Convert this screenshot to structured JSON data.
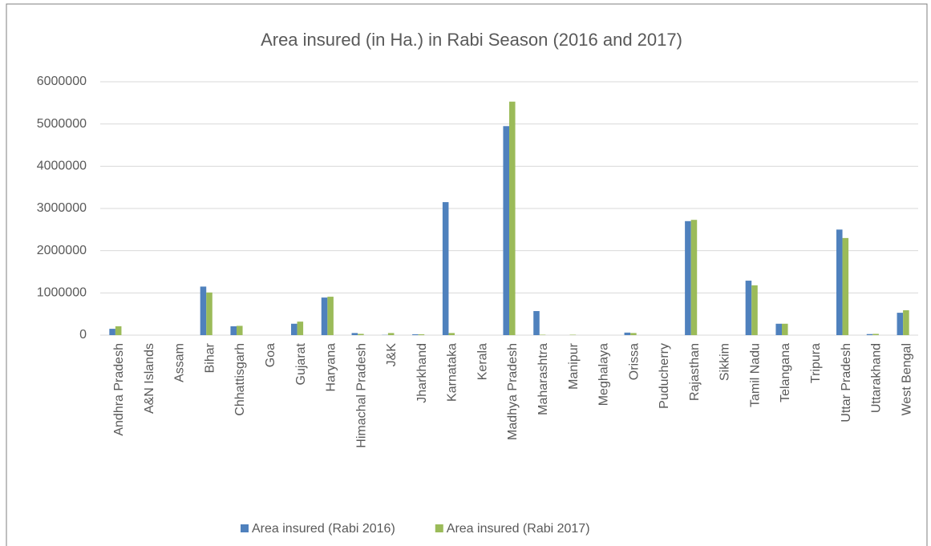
{
  "chart_data": {
    "type": "bar",
    "title": "Area insured (in Ha.) in Rabi Season (2016 and 2017)",
    "categories": [
      "Andhra Pradesh",
      "A&N Islands",
      "Assam",
      "Bihar",
      "Chhattisgarh",
      "Goa",
      "Gujarat",
      "Haryana",
      "Himachal Pradesh",
      "J&K",
      "Jharkhand",
      "Karnataka",
      "Kerala",
      "Madhya Pradesh",
      "Maharashtra",
      "Manipur",
      "Meghalaya",
      "Orissa",
      "Puducherry",
      "Rajasthan",
      "Sikkim",
      "Tamil Nadu",
      "Telangana",
      "Tripura",
      "Uttar Pradesh",
      "Uttarakhand",
      "West Bengal"
    ],
    "series": [
      {
        "name": "Area insured (Rabi 2016)",
        "color": "#4f81bd",
        "values": [
          150000,
          0,
          0,
          1150000,
          210000,
          0,
          270000,
          890000,
          50000,
          5000,
          20000,
          3150000,
          0,
          4950000,
          570000,
          0,
          0,
          60000,
          0,
          2700000,
          0,
          1290000,
          270000,
          0,
          2500000,
          25000,
          530000
        ]
      },
      {
        "name": "Area insured (Rabi 2017)",
        "color": "#9bbb59",
        "values": [
          210000,
          0,
          0,
          1010000,
          220000,
          0,
          320000,
          910000,
          30000,
          50000,
          20000,
          50000,
          0,
          5530000,
          10000,
          10000,
          0,
          50000,
          0,
          2730000,
          0,
          1180000,
          270000,
          0,
          2300000,
          30000,
          590000
        ]
      }
    ],
    "ylim": [
      0,
      6000000
    ],
    "yticks": [
      0,
      1000000,
      2000000,
      3000000,
      4000000,
      5000000,
      6000000
    ],
    "grid": true,
    "legend": "bottom"
  }
}
